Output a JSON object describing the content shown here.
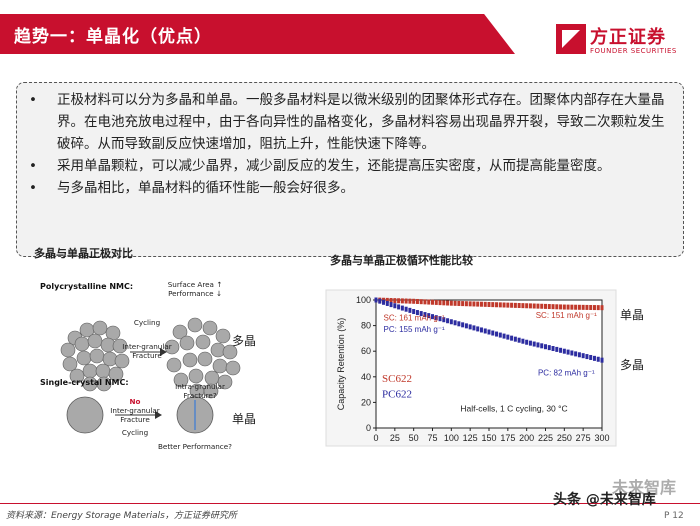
{
  "header": {
    "title": "趋势一：单晶化（优点）",
    "logo_name": "方正证券",
    "logo_en": "FOUNDER SECURITIES"
  },
  "bullets": [
    "正极材料可以分为多晶和单晶。一般多晶材料是以微米级别的团聚体形式存在。团聚体内部存在大量晶界。在电池充放电过程中，由于各向异性的晶格变化，多晶材料容易出现晶界开裂，导致二次颗粒发生破碎。从而导致副反应快速增加，阻抗上升，性能快速下降等。",
    "采用单晶颗粒，可以减少晶界，减少副反应的发生，还能提高压实密度，从而提高能量密度。",
    "与多晶相比，单晶材料的循环性能一般会好很多。"
  ],
  "left_figure": {
    "caption": "多晶与单晶正极对比",
    "poly_title": "Polycrystalline NMC:",
    "single_title": "Single-crystal NMC:",
    "surface_area": "Surface Area ↑",
    "performance": "Performance ↓",
    "cycling": "Cycling",
    "inter_granular": "Inter-granular",
    "fracture": "Fracture",
    "no": "No",
    "intra_granular": "Intra-granular",
    "fracture_q": "Fracture?",
    "better_perf": "Better Performance?",
    "label_poly": "多晶",
    "label_single": "单晶"
  },
  "right_figure": {
    "caption": "多晶与单晶正极循环性能比较",
    "label_single": "单晶",
    "label_poly": "多晶",
    "ylabel": "Capacity Retention (%)",
    "sc_start": "SC: 161 mAh g⁻¹",
    "pc_start": "PC: 155 mAh g⁻¹",
    "sc_end": "SC: 151 mAh g⁻¹",
    "pc_end": "PC: 82 mAh g⁻¹",
    "legend_sc": "SC622",
    "legend_pc": "PC622",
    "conditions": "Half-cells, 1 C cycling, 30 °C"
  },
  "colors": {
    "brand": "#c8102e",
    "sc": "#c0392b",
    "pc": "#2c2ca0"
  },
  "chart_data": {
    "type": "scatter",
    "xlabel": "",
    "ylabel": "Capacity Retention (%)",
    "xlim": [
      0,
      300
    ],
    "ylim": [
      0,
      100
    ],
    "xticks": [
      0,
      25,
      50,
      75,
      100,
      125,
      150,
      175,
      200,
      225,
      250,
      275,
      300
    ],
    "yticks": [
      0,
      20,
      40,
      60,
      80,
      100
    ],
    "series": [
      {
        "name": "SC622",
        "x": [
          0,
          50,
          100,
          150,
          200,
          250,
          300
        ],
        "y": [
          100,
          99,
          97.5,
          96.5,
          95.5,
          94.5,
          94
        ]
      },
      {
        "name": "PC622",
        "x": [
          0,
          50,
          100,
          150,
          200,
          250,
          300
        ],
        "y": [
          100,
          91,
          83,
          75,
          67,
          60,
          53
        ]
      }
    ]
  },
  "footer": {
    "source": "资料来源：Energy Storage Materials，方正证券研究所",
    "page": "P 12",
    "watermark1": "头条 @未来智库",
    "watermark2": "未来智库"
  }
}
